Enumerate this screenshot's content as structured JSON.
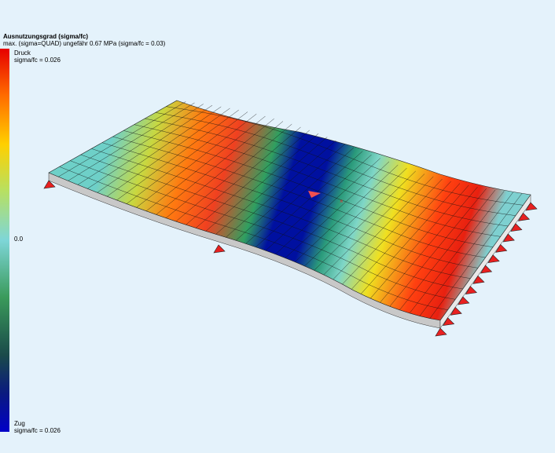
{
  "header": {
    "title": "Ausnutzungsgrad (sigma/fc)",
    "subtitle": "max. (sigma=QUAD) ungefähr 0.67 MPa (sigma/fc = 0.03)"
  },
  "legend": {
    "top_label": "Druck",
    "top_value": "sigma/fc = 0.026",
    "middle": "0.0",
    "bottom_label": "Zug",
    "bottom_value": "sigma/fc = 0.026"
  }
}
